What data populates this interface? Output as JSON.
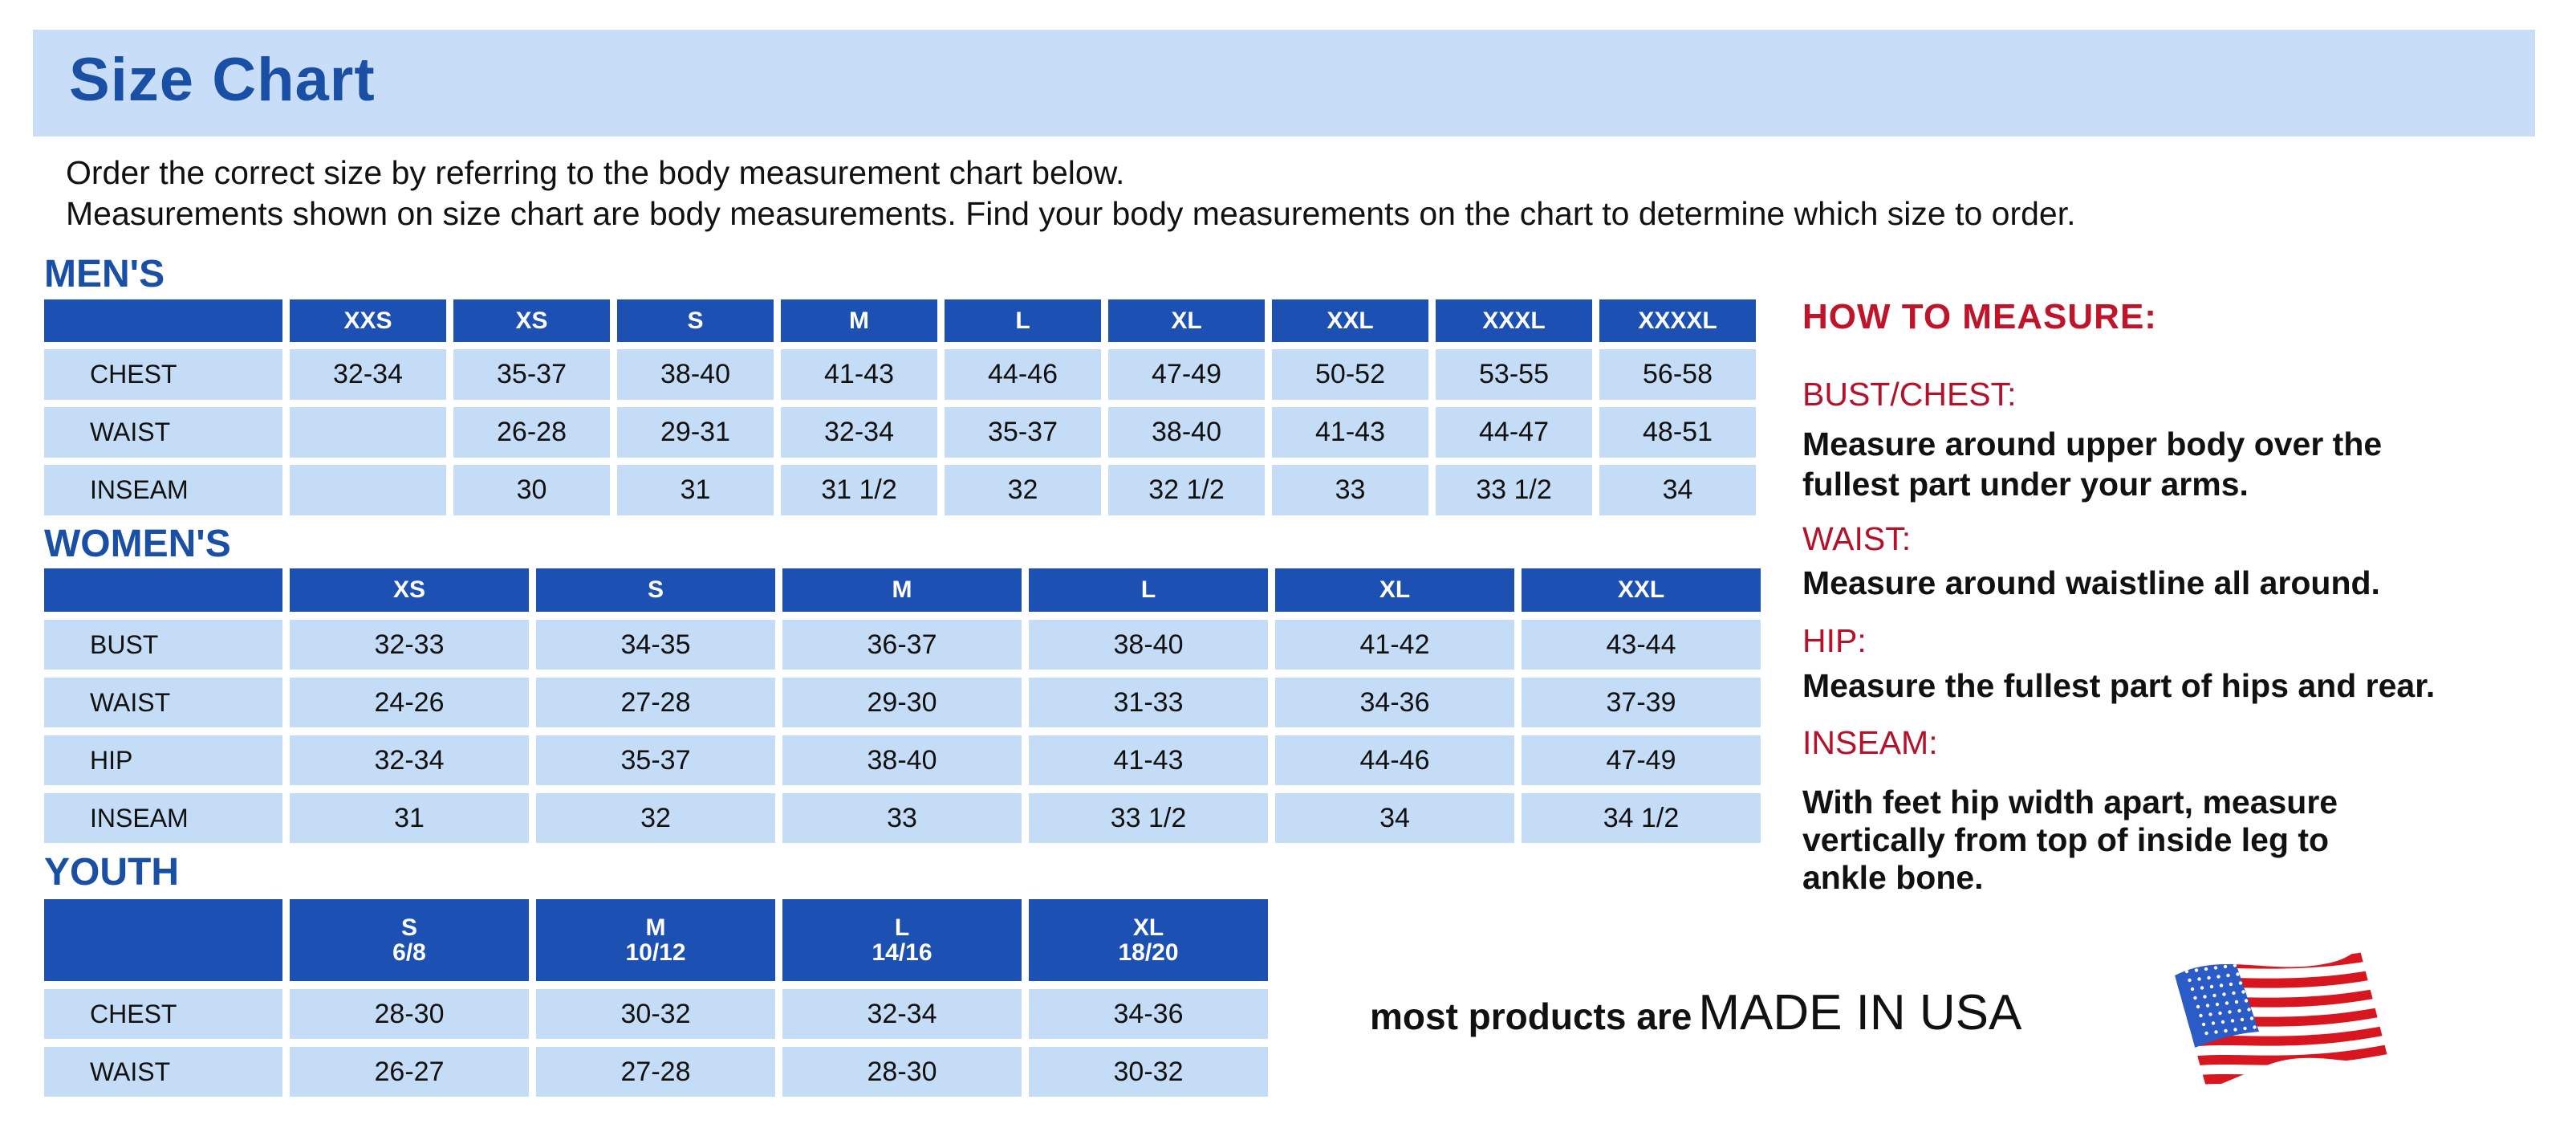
{
  "title": "Size Chart",
  "intro": [
    "Order the correct size by referring to the body measurement chart below.",
    "Measurements shown on size chart are body measurements.  Find your body measurements on the chart to determine which size to order."
  ],
  "colors": {
    "header_blue": "#1c50b3",
    "cell_blue": "#c5dcf6",
    "title_blue": "#1a4fa6",
    "accent_red": "#c0142a"
  },
  "mens": {
    "label": "MEN'S",
    "headers": [
      "",
      "XXS",
      "XS",
      "S",
      "M",
      "L",
      "XL",
      "XXL",
      "XXXL",
      "XXXXL"
    ],
    "rows": [
      [
        "CHEST",
        "32-34",
        "35-37",
        "38-40",
        "41-43",
        "44-46",
        "47-49",
        "50-52",
        "53-55",
        "56-58"
      ],
      [
        "WAIST",
        "",
        "26-28",
        "29-31",
        "32-34",
        "35-37",
        "38-40",
        "41-43",
        "44-47",
        "48-51"
      ],
      [
        "INSEAM",
        "",
        "30",
        "31",
        "31 1/2",
        "32",
        "32 1/2",
        "33",
        "33 1/2",
        "34"
      ]
    ]
  },
  "womens": {
    "label": "WOMEN'S",
    "headers": [
      "",
      "XS",
      "S",
      "M",
      "L",
      "XL",
      "XXL"
    ],
    "rows": [
      [
        "BUST",
        "32-33",
        "34-35",
        "36-37",
        "38-40",
        "41-42",
        "43-44"
      ],
      [
        "WAIST",
        "24-26",
        "27-28",
        "29-30",
        "31-33",
        "34-36",
        "37-39"
      ],
      [
        "HIP",
        "32-34",
        "35-37",
        "38-40",
        "41-43",
        "44-46",
        "47-49"
      ],
      [
        "INSEAM",
        "31",
        "32",
        "33",
        "33 1/2",
        "34",
        "34 1/2"
      ]
    ]
  },
  "youth": {
    "label": "YOUTH",
    "headers": [
      "",
      "S\n6/8",
      "M\n10/12",
      "L\n14/16",
      "XL\n18/20"
    ],
    "rows": [
      [
        "CHEST",
        "28-30",
        "30-32",
        "32-34",
        "34-36"
      ],
      [
        "WAIST",
        "26-27",
        "27-28",
        "28-30",
        "30-32"
      ]
    ]
  },
  "how_to_measure": {
    "heading": "HOW TO MEASURE:",
    "items": [
      {
        "term": "BUST/CHEST:",
        "desc": "Measure around upper body over the\nfullest part under your arms."
      },
      {
        "term": "WAIST:",
        "desc": "Measure around waistline all around."
      },
      {
        "term": "HIP:",
        "desc": "Measure the fullest part of hips and rear."
      },
      {
        "term": "INSEAM:",
        "desc": "With feet hip width apart, measure\nvertically from top of inside leg to\nankle bone."
      }
    ]
  },
  "made_in": {
    "prefix": "most products are",
    "main": "MADE IN USA",
    "icon": "us-flag-icon"
  }
}
